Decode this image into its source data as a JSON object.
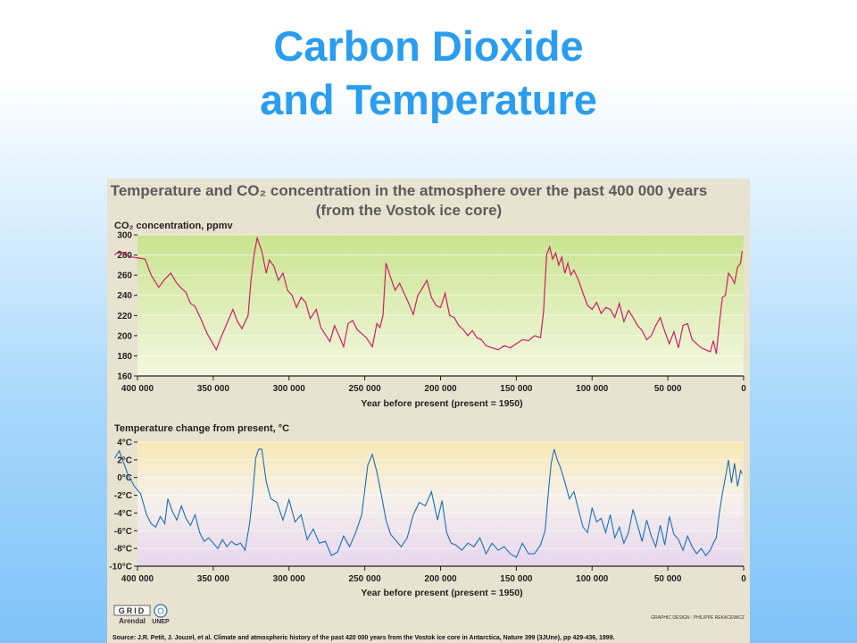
{
  "slide": {
    "title_line1": "Carbon Dioxide",
    "title_line2": "and Temperature"
  },
  "figure": {
    "title_line1": "Temperature and CO₂ concentration in the atmosphere over the past 400 000 years",
    "title_line2": "(from the Vostok ice core)",
    "source": "Source: J.R. Petit, J. Jouzel, et al. Climate and atmospheric history of the past 420 000 years from the Vostok ice core in Antarctica, Nature 399 (3JUne), pp 429-436, 1999.",
    "credit": "GRAPHIC DESIGN : PHILIPPE REKACEWICZ",
    "logo_grid": "GRID",
    "logo_arendal": "Arendal",
    "logo_unep": "UNEP"
  },
  "colors": {
    "title": "#2a9df0",
    "co2_line": "#cc1f66",
    "temp_line": "#1a6fb8"
  },
  "chart_data": [
    {
      "type": "line",
      "panel_label": "CO₂ concentration, ppmv",
      "xlabel": "Year before present (present = 1950)",
      "xlim": [
        400000,
        0
      ],
      "ylim": [
        160,
        300
      ],
      "x_ticks": [
        400000,
        350000,
        300000,
        250000,
        200000,
        150000,
        100000,
        50000,
        0
      ],
      "x_tick_labels": [
        "400 000",
        "350 000",
        "300 000",
        "250 000",
        "200 000",
        "150 000",
        "100 000",
        "50 000",
        "0"
      ],
      "y_ticks": [
        160,
        180,
        200,
        220,
        240,
        260,
        280,
        300
      ],
      "y_tick_labels": [
        "160",
        "180",
        "200",
        "220",
        "240",
        "260",
        "280",
        "300"
      ],
      "series": [
        {
          "x": [
            415000,
            412000,
            408000,
            404000,
            399000,
            395000,
            391000,
            386000,
            382000,
            378000,
            374000,
            371000,
            368000,
            365000,
            362000,
            358000,
            354000,
            351000,
            348000,
            345000,
            341000,
            337000,
            334000,
            331000,
            327000,
            325000,
            323000,
            321000,
            318000,
            315000,
            313000,
            310000,
            307000,
            304000,
            301000,
            298000,
            295000,
            292000,
            289000,
            286000,
            282000,
            279000,
            276000,
            273000,
            270000,
            267000,
            264000,
            261000,
            258000,
            255000,
            252000,
            249000,
            245000,
            242000,
            240000,
            238000,
            236000,
            233000,
            230000,
            227000,
            224000,
            221000,
            218000,
            215000,
            212000,
            209000,
            206000,
            203000,
            200000,
            197000,
            194000,
            191000,
            188000,
            185000,
            182000,
            179000,
            176000,
            173000,
            170000,
            166000,
            162000,
            158000,
            154000,
            150000,
            146000,
            142000,
            138000,
            134000,
            132000,
            130000,
            128000,
            126000,
            124000,
            122000,
            120000,
            118000,
            116000,
            114000,
            112000,
            109000,
            106000,
            103000,
            100000,
            97000,
            94000,
            91000,
            88000,
            85000,
            82000,
            79000,
            76000,
            73000,
            70000,
            67000,
            64000,
            61000,
            58000,
            55000,
            52000,
            49000,
            46000,
            43000,
            40000,
            37000,
            34000,
            31000,
            28000,
            25000,
            22000,
            20000,
            18000,
            16000,
            14000,
            12000,
            10000,
            8000,
            6000,
            4000,
            2000,
            1000
          ],
          "values": [
            280,
            284,
            281,
            278,
            277,
            276,
            260,
            248,
            256,
            262,
            252,
            247,
            243,
            232,
            229,
            216,
            202,
            194,
            186,
            198,
            212,
            226,
            214,
            207,
            220,
            256,
            281,
            297,
            284,
            262,
            275,
            269,
            255,
            262,
            245,
            240,
            228,
            238,
            233,
            217,
            226,
            208,
            201,
            194,
            210,
            200,
            189,
            212,
            215,
            206,
            202,
            198,
            189,
            212,
            208,
            220,
            272,
            258,
            245,
            252,
            242,
            232,
            221,
            240,
            247,
            255,
            238,
            230,
            228,
            242,
            220,
            218,
            210,
            206,
            200,
            205,
            198,
            196,
            190,
            188,
            186,
            190,
            188,
            192,
            196,
            195,
            200,
            198,
            224,
            280,
            288,
            276,
            282,
            270,
            278,
            262,
            272,
            260,
            265,
            255,
            242,
            230,
            226,
            233,
            222,
            228,
            226,
            218,
            232,
            214,
            225,
            218,
            210,
            205,
            196,
            200,
            210,
            218,
            204,
            192,
            204,
            188,
            210,
            212,
            196,
            192,
            188,
            186,
            184,
            195,
            182,
            212,
            238,
            240,
            262,
            258,
            252,
            268,
            272,
            284
          ]
        }
      ]
    },
    {
      "type": "line",
      "panel_label": "Temperature change from present, °C",
      "xlabel": "Year before present (present = 1950)",
      "xlim": [
        400000,
        0
      ],
      "ylim": [
        -10,
        4
      ],
      "x_ticks": [
        400000,
        350000,
        300000,
        250000,
        200000,
        150000,
        100000,
        50000,
        0
      ],
      "x_tick_labels": [
        "400 000",
        "350 000",
        "300 000",
        "250 000",
        "200 000",
        "150 000",
        "100 000",
        "50 000",
        "0"
      ],
      "y_ticks": [
        -10,
        -8,
        -6,
        -4,
        -2,
        0,
        2,
        4
      ],
      "y_tick_labels": [
        "-10°C",
        "-8°C",
        "-6°C",
        "-4°C",
        "-2°C",
        "0°C",
        "2°C",
        "4°C"
      ],
      "series": [
        {
          "x": [
            415000,
            412000,
            409000,
            406000,
            402000,
            398000,
            394000,
            391000,
            388000,
            385000,
            382000,
            380000,
            377000,
            374000,
            371000,
            368000,
            365000,
            362000,
            359000,
            356000,
            353000,
            350000,
            347000,
            344000,
            341000,
            338000,
            335000,
            332000,
            329000,
            326000,
            324000,
            322000,
            320000,
            318000,
            315000,
            312000,
            308000,
            304000,
            300000,
            296000,
            292000,
            288000,
            284000,
            280000,
            276000,
            272000,
            268000,
            264000,
            260000,
            256000,
            252000,
            248000,
            245000,
            242000,
            239000,
            236000,
            233000,
            230000,
            226000,
            222000,
            218000,
            214000,
            210000,
            206000,
            202000,
            199000,
            196000,
            193000,
            190000,
            186000,
            182000,
            178000,
            174000,
            170000,
            166000,
            162000,
            158000,
            154000,
            150000,
            146000,
            142000,
            138000,
            134000,
            131000,
            129000,
            127000,
            125000,
            123000,
            121000,
            118000,
            115000,
            112000,
            109000,
            106000,
            103000,
            100000,
            97000,
            94000,
            91000,
            88000,
            85000,
            82000,
            79000,
            76000,
            73000,
            70000,
            67000,
            64000,
            61000,
            58000,
            55000,
            52000,
            49000,
            46000,
            43000,
            40000,
            37000,
            34000,
            31000,
            28000,
            25000,
            22000,
            20000,
            18000,
            16000,
            14000,
            12000,
            10000,
            8000,
            6000,
            4000,
            2000,
            1000
          ],
          "values": [
            2.2,
            3,
            1.6,
            0.2,
            -1,
            -1.8,
            -4.2,
            -5.2,
            -5.6,
            -4.4,
            -5.2,
            -2.4,
            -3.8,
            -4.8,
            -3.2,
            -4.6,
            -5.4,
            -4.2,
            -6.2,
            -7.2,
            -6.8,
            -7.4,
            -8,
            -7,
            -7.8,
            -7.2,
            -7.6,
            -7.4,
            -8.2,
            -5.2,
            -2,
            2.2,
            3.2,
            3.2,
            -0.5,
            -2.4,
            -2.8,
            -4.8,
            -2.5,
            -5,
            -4.2,
            -7,
            -5.8,
            -7.4,
            -7.2,
            -8.8,
            -8.4,
            -6.6,
            -7.8,
            -6.2,
            -4.2,
            1.4,
            2.6,
            0.6,
            -2,
            -4.8,
            -6.4,
            -7,
            -7.8,
            -6.8,
            -4.2,
            -2.8,
            -3.2,
            -1.6,
            -4.8,
            -2.6,
            -6.2,
            -7.4,
            -7.6,
            -8.2,
            -7.4,
            -7.8,
            -6.8,
            -8.6,
            -7.4,
            -8.2,
            -7.8,
            -8.6,
            -9,
            -7.4,
            -8.6,
            -8.6,
            -7.6,
            -6,
            -2,
            1.6,
            3.2,
            2,
            1.2,
            -0.5,
            -2.4,
            -1.6,
            -3.6,
            -5.6,
            -6.2,
            -3.4,
            -5,
            -4.6,
            -6.2,
            -4.2,
            -6.8,
            -5.6,
            -7.4,
            -6.2,
            -3.6,
            -5.4,
            -7.2,
            -4.8,
            -6.6,
            -7.8,
            -5.4,
            -7.6,
            -4.4,
            -6.4,
            -7,
            -8.2,
            -6.6,
            -7.8,
            -8.6,
            -8,
            -8.8,
            -8.2,
            -7.4,
            -6.8,
            -4,
            -1.8,
            0,
            2,
            -0.6,
            1.6,
            -1,
            0.8,
            0.4
          ]
        }
      ]
    }
  ]
}
